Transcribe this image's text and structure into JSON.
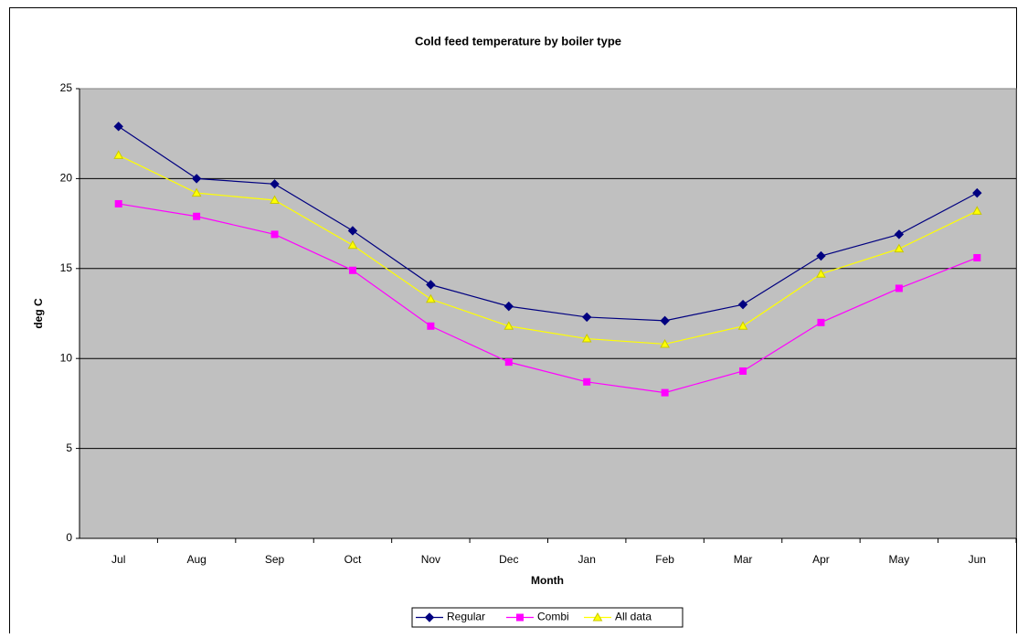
{
  "chart_data": {
    "type": "line",
    "title": "Cold feed temperature by boiler type",
    "x_label": "Month",
    "y_label": "deg C",
    "categories": [
      "Jul",
      "Aug",
      "Sep",
      "Oct",
      "Nov",
      "Dec",
      "Jan",
      "Feb",
      "Mar",
      "Apr",
      "May",
      "Jun"
    ],
    "ylim": [
      0,
      25
    ],
    "yticks": [
      0,
      5,
      10,
      15,
      20,
      25
    ],
    "grid": true,
    "legend": "bottom",
    "series": [
      {
        "name": "Regular",
        "color": "#000080",
        "marker": "diamond",
        "values": [
          22.9,
          20.0,
          19.7,
          17.1,
          14.1,
          12.9,
          12.3,
          12.1,
          13.0,
          15.7,
          16.9,
          19.2
        ]
      },
      {
        "name": "Combi",
        "color": "#FF00FF",
        "marker": "square",
        "values": [
          18.6,
          17.9,
          16.9,
          14.9,
          11.8,
          9.8,
          8.7,
          8.1,
          9.3,
          12.0,
          13.9,
          15.6
        ]
      },
      {
        "name": "All data",
        "color": "#FFFF00",
        "marker": "triangle",
        "values": [
          21.3,
          19.2,
          18.8,
          16.3,
          13.3,
          11.8,
          11.1,
          10.8,
          11.8,
          14.7,
          16.1,
          18.2
        ]
      }
    ]
  }
}
